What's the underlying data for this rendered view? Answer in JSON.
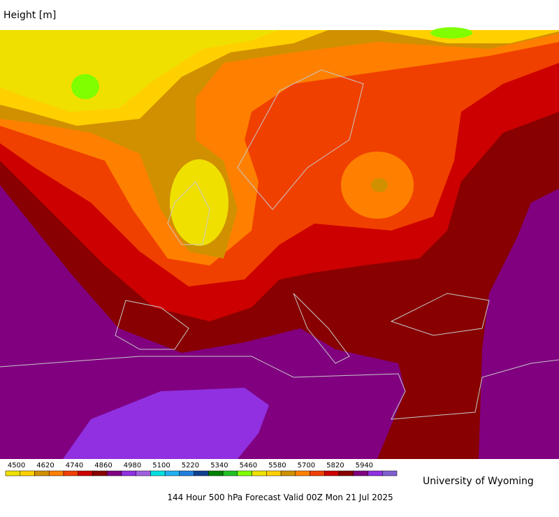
{
  "title": "Height [m]",
  "colorbar": {
    "labels": [
      4500,
      4620,
      4740,
      4860,
      4980,
      5100,
      5220,
      5340,
      5460,
      5580,
      5700,
      5820,
      5940
    ],
    "colors": [
      "#f0e000",
      "#ffd000",
      "#d09000",
      "#ff8000",
      "#f04000",
      "#cc0000",
      "#880000",
      "#800080",
      "#9030e0",
      "#a060e0",
      "#00e0e0",
      "#20b0f0",
      "#2080e0",
      "#104090",
      "#008000",
      "#20c020",
      "#80ff00",
      "#f0e000",
      "#ffd000",
      "#d09000",
      "#ff8000",
      "#f04000",
      "#cc0000",
      "#880000",
      "#800080",
      "#9030e0",
      "#8060d0"
    ]
  },
  "credit": "University of Wyoming",
  "caption": "144 Hour 500 hPa Forecast Valid 00Z Mon 21 Jul 2025"
}
